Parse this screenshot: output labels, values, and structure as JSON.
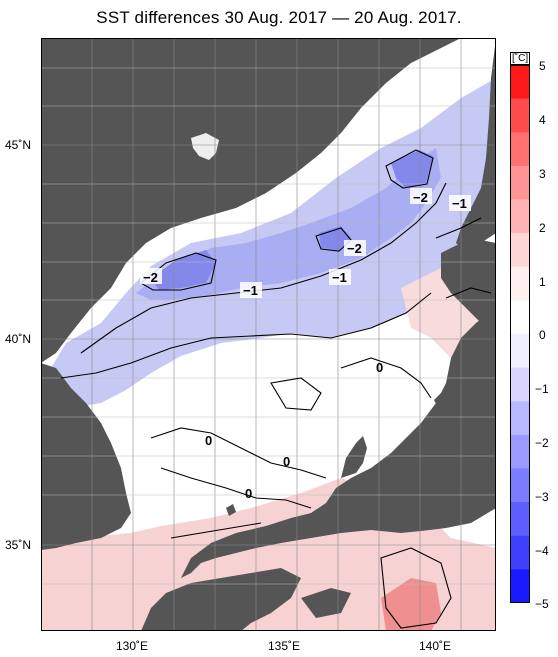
{
  "title": "SST differences 30 Aug. 2017 — 20 Aug. 2017.",
  "lat_labels": [
    "45˚N",
    "40˚N",
    "35˚N"
  ],
  "lon_labels": [
    "130˚E",
    "135˚E",
    "140˚E"
  ],
  "colorbar": {
    "unit": "[˚C]",
    "ticks": [
      "5",
      "4",
      "3",
      "2",
      "1",
      "0",
      "−1",
      "−2",
      "−3",
      "−4",
      "−5"
    ],
    "colors": [
      "#ff1a1a",
      "#ff4d4d",
      "#ff7070",
      "#ff9494",
      "#ffb3b3",
      "#ffd6d6",
      "#fff0f0",
      "#ffffff",
      "#f0f0ff",
      "#d6d6ff",
      "#b8b8ff",
      "#9a9aff",
      "#7c7cff",
      "#5e5eff",
      "#4040ff",
      "#1a1aff"
    ],
    "range": [
      -5,
      5
    ]
  },
  "contour_labels": [
    "−2",
    "−1",
    "−2",
    "−2",
    "−1",
    "−1",
    "0",
    "0",
    "0",
    "0"
  ],
  "colors": {
    "land": "#555555",
    "sea_neutral": "#ffffff",
    "cool": "#a9adf2",
    "warm": "#f6c4c4"
  }
}
